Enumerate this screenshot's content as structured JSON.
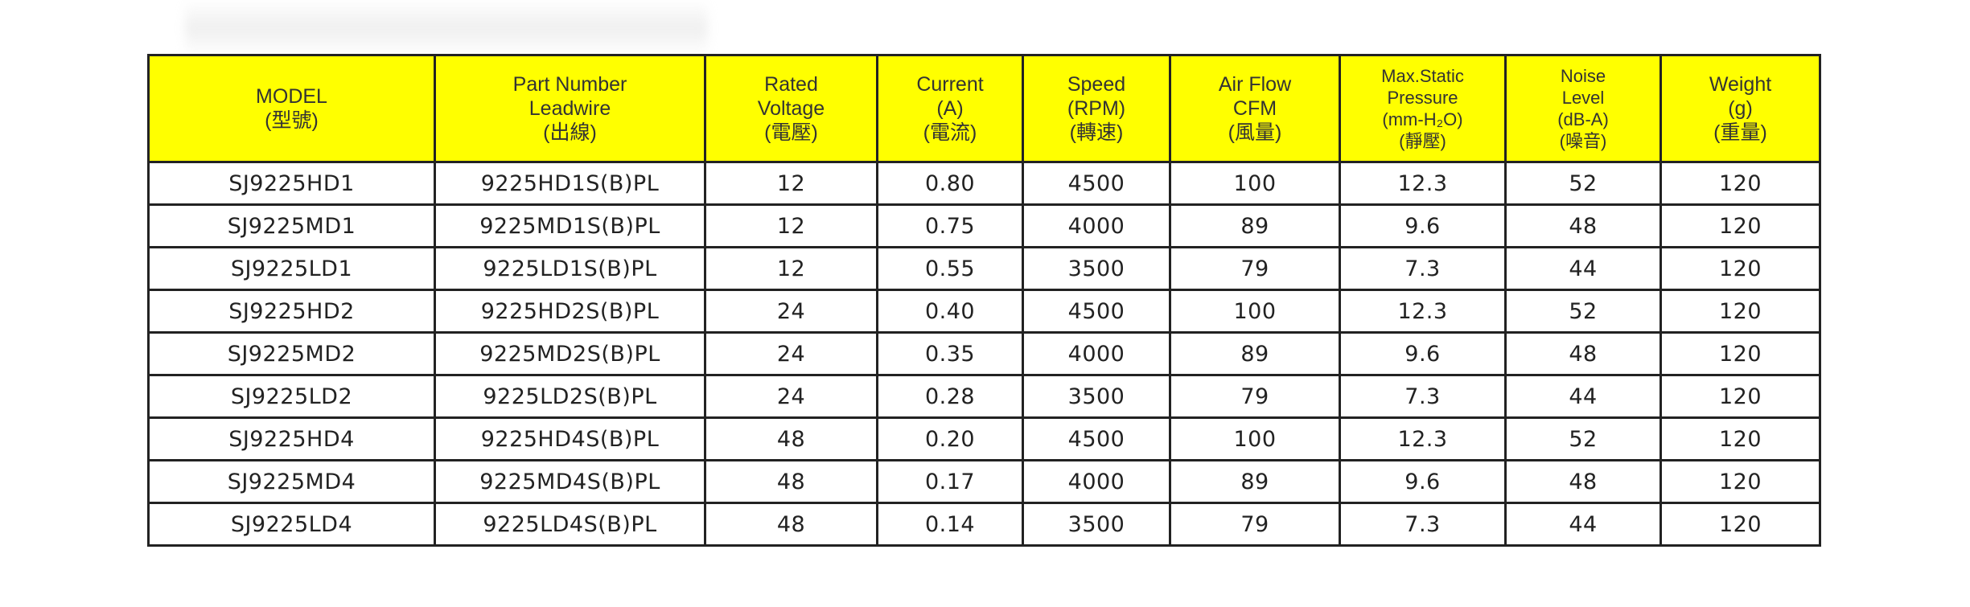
{
  "headers": [
    [
      "MODEL",
      "(型號)"
    ],
    [
      "Part Number",
      "Leadwire",
      "(出線)"
    ],
    [
      "Rated",
      "Voltage",
      "(電壓)"
    ],
    [
      "Current",
      "(A)",
      "(電流)"
    ],
    [
      "Speed",
      "(RPM)",
      "(轉速)"
    ],
    [
      "Air Flow",
      "CFM",
      "(風量)"
    ],
    [
      "Max.Static",
      "Pressure",
      "(mm-H₂O)",
      "(靜壓)"
    ],
    [
      "Noise",
      "Level",
      "(dB-A)",
      "(噪音)"
    ],
    [
      "Weight",
      "(g)",
      "(重量)"
    ]
  ],
  "rows": [
    [
      "SJ9225HD1",
      "9225HD1S(B)PL",
      "12",
      "0.80",
      "4500",
      "100",
      "12.3",
      "52",
      "120"
    ],
    [
      "SJ9225MD1",
      "9225MD1S(B)PL",
      "12",
      "0.75",
      "4000",
      "89",
      "9.6",
      "48",
      "120"
    ],
    [
      "SJ9225LD1",
      "9225LD1S(B)PL",
      "12",
      "0.55",
      "3500",
      "79",
      "7.3",
      "44",
      "120"
    ],
    [
      "SJ9225HD2",
      "9225HD2S(B)PL",
      "24",
      "0.40",
      "4500",
      "100",
      "12.3",
      "52",
      "120"
    ],
    [
      "SJ9225MD2",
      "9225MD2S(B)PL",
      "24",
      "0.35",
      "4000",
      "89",
      "9.6",
      "48",
      "120"
    ],
    [
      "SJ9225LD2",
      "9225LD2S(B)PL",
      "24",
      "0.28",
      "3500",
      "79",
      "7.3",
      "44",
      "120"
    ],
    [
      "SJ9225HD4",
      "9225HD4S(B)PL",
      "48",
      "0.20",
      "4500",
      "100",
      "12.3",
      "52",
      "120"
    ],
    [
      "SJ9225MD4",
      "9225MD4S(B)PL",
      "48",
      "0.17",
      "4000",
      "89",
      "9.6",
      "48",
      "120"
    ],
    [
      "SJ9225LD4",
      "9225LD4S(B)PL",
      "48",
      "0.14",
      "3500",
      "79",
      "7.3",
      "44",
      "120"
    ]
  ],
  "colors": {
    "header_bg": "#ffff00",
    "border": "#222222"
  }
}
